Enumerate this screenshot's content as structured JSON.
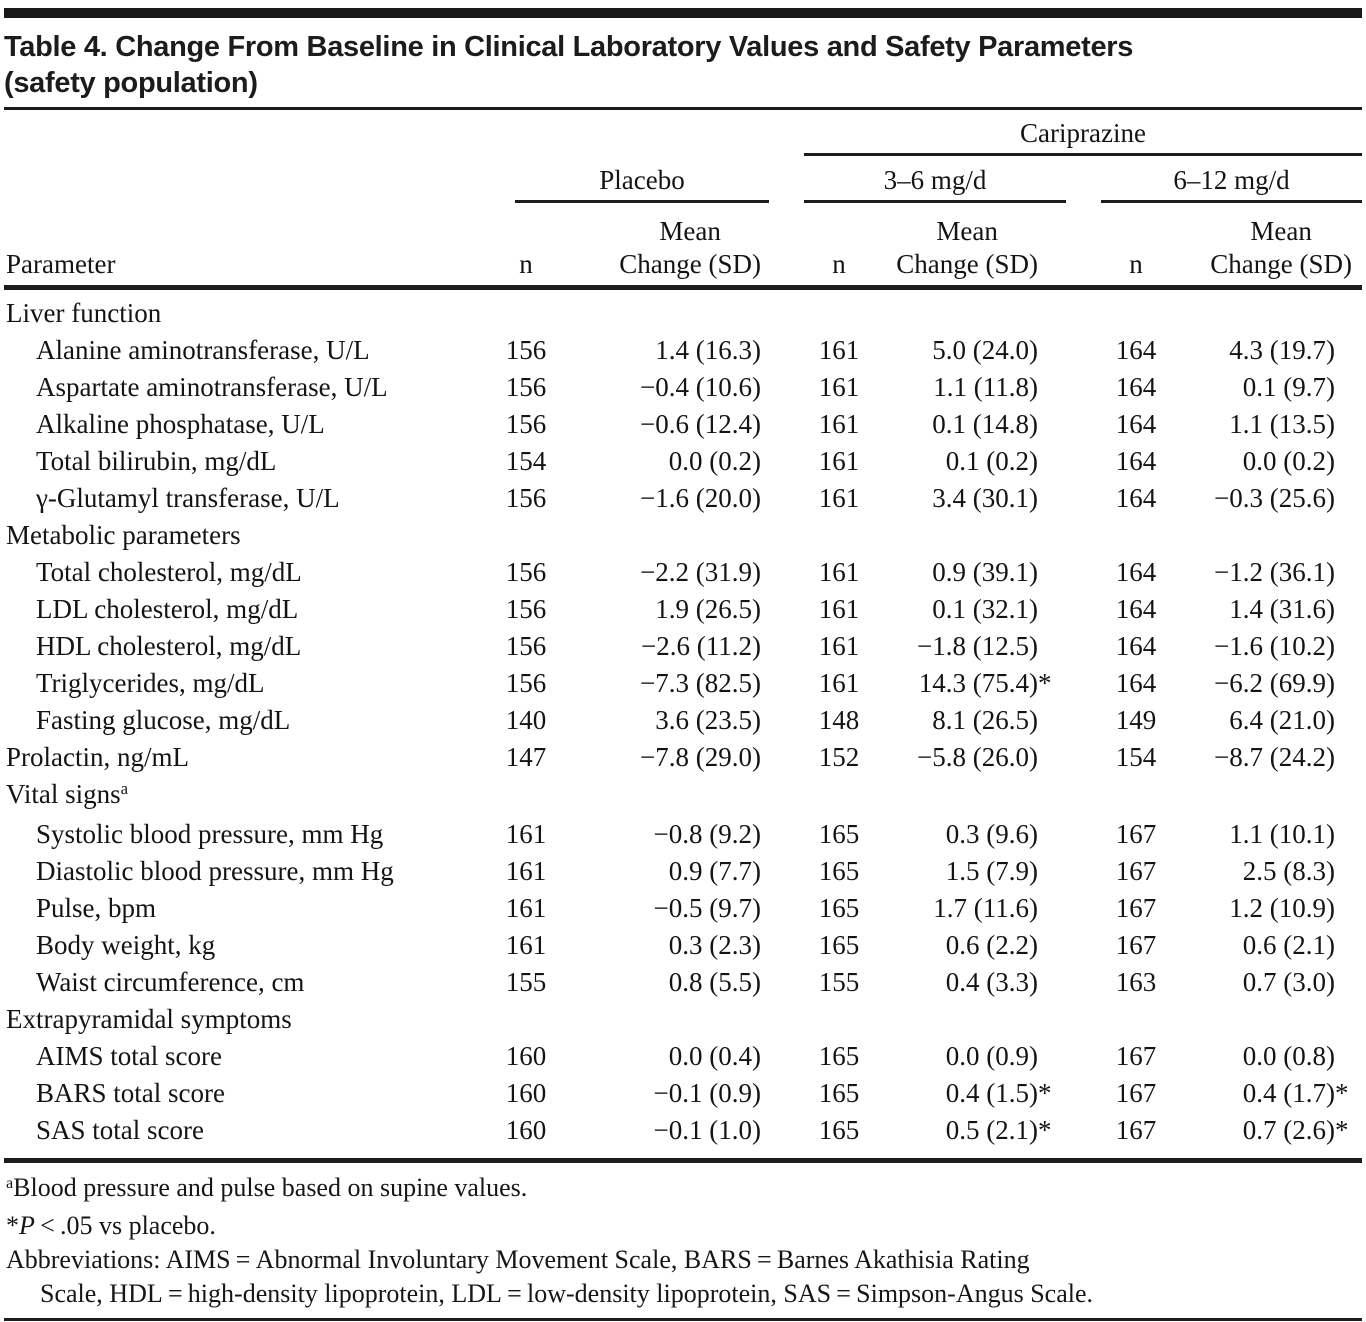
{
  "colors": {
    "ink": "#1a1a1a",
    "background": "#ffffff"
  },
  "title": {
    "line1": "Table 4. Change From Baseline in Clinical Laboratory Values and Safety Parameters",
    "line2": "(safety population)"
  },
  "table": {
    "group_title": "Cariprazine",
    "parameter_header": "Parameter",
    "columns": [
      {
        "label": "Placebo",
        "n": "n",
        "mean": "Mean",
        "change": "Change (SD)"
      },
      {
        "label": "3–6 mg/d",
        "n": "n",
        "mean": "Mean",
        "change": "Change (SD)"
      },
      {
        "label": "6–12 mg/d",
        "n": "n",
        "mean": "Mean",
        "change": "Change (SD)"
      }
    ],
    "rows": [
      {
        "type": "section",
        "label": "Liver function"
      },
      {
        "type": "data",
        "indent": true,
        "label": "Alanine aminotransferase, U/L",
        "cells": [
          "156",
          "1.4 (16.3)",
          "161",
          "5.0 (24.0)",
          "164",
          "4.3 (19.7)"
        ]
      },
      {
        "type": "data",
        "indent": true,
        "label": "Aspartate aminotransferase, U/L",
        "cells": [
          "156",
          "−0.4 (10.6)",
          "161",
          "1.1 (11.8)",
          "164",
          "0.1 (9.7)"
        ]
      },
      {
        "type": "data",
        "indent": true,
        "label": "Alkaline phosphatase, U/L",
        "cells": [
          "156",
          "−0.6 (12.4)",
          "161",
          "0.1 (14.8)",
          "164",
          "1.1 (13.5)"
        ]
      },
      {
        "type": "data",
        "indent": true,
        "label": "Total bilirubin, mg/dL",
        "cells": [
          "154",
          "0.0 (0.2)",
          "161",
          "0.1 (0.2)",
          "164",
          "0.0 (0.2)"
        ]
      },
      {
        "type": "data",
        "indent": true,
        "label": "γ-Glutamyl transferase, U/L",
        "cells": [
          "156",
          "−1.6 (20.0)",
          "161",
          "3.4 (30.1)",
          "164",
          "−0.3 (25.6)"
        ]
      },
      {
        "type": "section",
        "label": "Metabolic parameters"
      },
      {
        "type": "data",
        "indent": true,
        "label": "Total cholesterol, mg/dL",
        "cells": [
          "156",
          "−2.2 (31.9)",
          "161",
          "0.9 (39.1)",
          "164",
          "−1.2 (36.1)"
        ]
      },
      {
        "type": "data",
        "indent": true,
        "label": "LDL cholesterol, mg/dL",
        "cells": [
          "156",
          "1.9 (26.5)",
          "161",
          "0.1 (32.1)",
          "164",
          "1.4 (31.6)"
        ]
      },
      {
        "type": "data",
        "indent": true,
        "label": "HDL cholesterol, mg/dL",
        "cells": [
          "156",
          "−2.6 (11.2)",
          "161",
          "−1.8 (12.5)",
          "164",
          "−1.6 (10.2)"
        ]
      },
      {
        "type": "data",
        "indent": true,
        "label": "Triglycerides, mg/dL",
        "cells": [
          "156",
          "−7.3 (82.5)",
          "161",
          "14.3 (75.4)*",
          "164",
          "−6.2 (69.9)"
        ]
      },
      {
        "type": "data",
        "indent": true,
        "label": "Fasting glucose, mg/dL",
        "cells": [
          "140",
          "3.6 (23.5)",
          "148",
          "8.1 (26.5)",
          "149",
          "6.4 (21.0)"
        ]
      },
      {
        "type": "data",
        "indent": false,
        "label": "Prolactin, ng/mL",
        "cells": [
          "147",
          "−7.8 (29.0)",
          "152",
          "−5.8 (26.0)",
          "154",
          "−8.7 (24.2)"
        ]
      },
      {
        "type": "section",
        "label": "Vital signs",
        "sup": "a"
      },
      {
        "type": "data",
        "indent": true,
        "label": "Systolic blood pressure, mm Hg",
        "cells": [
          "161",
          "−0.8 (9.2)",
          "165",
          "0.3 (9.6)",
          "167",
          "1.1 (10.1)"
        ]
      },
      {
        "type": "data",
        "indent": true,
        "label": "Diastolic blood pressure, mm Hg",
        "cells": [
          "161",
          "0.9 (7.7)",
          "165",
          "1.5 (7.9)",
          "167",
          "2.5 (8.3)"
        ]
      },
      {
        "type": "data",
        "indent": true,
        "label": "Pulse, bpm",
        "cells": [
          "161",
          "−0.5 (9.7)",
          "165",
          "1.7 (11.6)",
          "167",
          "1.2 (10.9)"
        ]
      },
      {
        "type": "data",
        "indent": true,
        "label": "Body weight, kg",
        "cells": [
          "161",
          "0.3 (2.3)",
          "165",
          "0.6 (2.2)",
          "167",
          "0.6 (2.1)"
        ]
      },
      {
        "type": "data",
        "indent": true,
        "label": "Waist circumference, cm",
        "cells": [
          "155",
          "0.8 (5.5)",
          "155",
          "0.4 (3.3)",
          "163",
          "0.7 (3.0)"
        ]
      },
      {
        "type": "section",
        "label": "Extrapyramidal symptoms"
      },
      {
        "type": "data",
        "indent": true,
        "label": "AIMS total score",
        "cells": [
          "160",
          "0.0 (0.4)",
          "165",
          "0.0 (0.9)",
          "167",
          "0.0 (0.8)"
        ]
      },
      {
        "type": "data",
        "indent": true,
        "label": "BARS total score",
        "cells": [
          "160",
          "−0.1 (0.9)",
          "165",
          "0.4 (1.5)*",
          "167",
          "0.4 (1.7)*"
        ]
      },
      {
        "type": "data",
        "indent": true,
        "label": "SAS total score",
        "cells": [
          "160",
          "−0.1 (1.0)",
          "165",
          "0.5 (2.1)*",
          "167",
          "0.7 (2.6)*"
        ]
      }
    ]
  },
  "footnotes": [
    [
      {
        "sup": true,
        "text": "a"
      },
      {
        "text": "Blood pressure and pulse based on supine values."
      }
    ],
    [
      {
        "text": "*"
      },
      {
        "italic": true,
        "text": "P"
      },
      {
        "text": " < .05 vs placebo."
      }
    ],
    [
      {
        "text": "Abbreviations: AIMS = Abnormal Involuntary Movement Scale, BARS = Barnes Akathisia Rating"
      },
      {
        "br": true
      },
      {
        "indent": true,
        "text": "Scale, HDL = high-density lipoprotein, LDL = low-density lipoprotein, SAS = Simpson-Angus Scale."
      }
    ]
  ]
}
